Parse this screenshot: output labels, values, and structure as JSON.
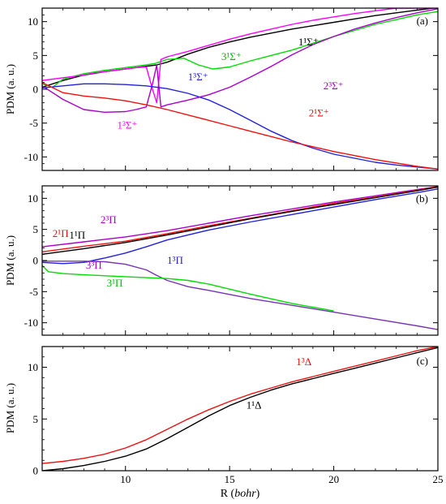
{
  "chart_data": [
    {
      "type": "line",
      "panel_label": "(a)",
      "ylabel": "PDM (a. u.)",
      "xlim": [
        6,
        25
      ],
      "ylim": [
        -12,
        12
      ],
      "yticks": [
        -10,
        -5,
        0,
        5,
        10
      ],
      "xticks": [
        10,
        15,
        20,
        25
      ],
      "series": [
        {
          "name": "1¹Σ⁺",
          "color": "#000000",
          "x": [
            6,
            7,
            8,
            9,
            10,
            11,
            11.5,
            12,
            13,
            14,
            15,
            16,
            17,
            18,
            19,
            20,
            21,
            22,
            23,
            24,
            25
          ],
          "y": [
            0.3,
            1.3,
            2.1,
            2.6,
            3.0,
            3.4,
            3.6,
            4.0,
            5.2,
            6.2,
            7.0,
            7.7,
            8.3,
            8.9,
            9.4,
            9.9,
            10.4,
            10.9,
            11.3,
            11.7,
            12.1
          ]
        },
        {
          "name": "3¹Σ⁺",
          "color": "#00dd00",
          "x": [
            6,
            6.5,
            7,
            8,
            9,
            10,
            11,
            11.4,
            11.6,
            12,
            12.8,
            13.5,
            14.2,
            15,
            16,
            17,
            18,
            19,
            20,
            21,
            22,
            23,
            24,
            25
          ],
          "y": [
            0.8,
            0.3,
            1.5,
            2.3,
            2.8,
            3.2,
            3.6,
            3.8,
            4.0,
            4.4,
            4.6,
            3.6,
            3.0,
            3.3,
            4.2,
            5.0,
            5.8,
            6.8,
            7.8,
            8.7,
            9.6,
            10.3,
            11.0,
            11.5
          ]
        },
        {
          "name": "1³Σ⁺",
          "color": "#ff00ff",
          "x": [
            6,
            6.5,
            7,
            7.5,
            8,
            8.5,
            9,
            9.5,
            10,
            10.5,
            11,
            11.3,
            11.5,
            11.7,
            12,
            13,
            14,
            15,
            16,
            17,
            18,
            19,
            20,
            21,
            22,
            23,
            24,
            25
          ],
          "y": [
            1.3,
            1.5,
            1.7,
            1.9,
            2.1,
            2.4,
            2.6,
            2.8,
            3.0,
            3.2,
            3.3,
            0,
            -2.0,
            4.4,
            4.8,
            5.6,
            6.5,
            7.4,
            8.2,
            8.9,
            9.6,
            10.2,
            10.7,
            11.2,
            11.6,
            12.0,
            12.0,
            12.0
          ]
        },
        {
          "name": "2³Σ⁺",
          "color": "#aa00cc",
          "x": [
            6,
            7,
            8,
            9,
            10,
            10.5,
            11,
            11.3,
            11.5,
            11.7,
            12,
            13,
            14,
            15,
            16,
            17,
            18,
            19,
            20,
            21,
            22,
            23,
            24,
            25
          ],
          "y": [
            0.5,
            -1.5,
            -3.0,
            -3.4,
            -3.3,
            -3.0,
            -2.6,
            0.8,
            3.6,
            -2.6,
            -2.3,
            -1.6,
            -0.8,
            0.3,
            1.8,
            3.4,
            5.1,
            6.6,
            7.8,
            8.9,
            9.8,
            10.6,
            11.3,
            11.9
          ]
        },
        {
          "name": "1³Σ⁺",
          "color": "#2222dd",
          "x": [
            6,
            7,
            8,
            9,
            10,
            11,
            12,
            13,
            14,
            15,
            16,
            17,
            18,
            19,
            20,
            21,
            22,
            23,
            24,
            25
          ],
          "y": [
            0.2,
            0.5,
            0.8,
            0.8,
            0.7,
            0.5,
            0.1,
            -0.6,
            -1.6,
            -3.0,
            -4.6,
            -6.2,
            -7.6,
            -8.7,
            -9.6,
            -10.2,
            -10.8,
            -11.2,
            -11.5,
            -11.8
          ]
        },
        {
          "name": "2¹Σ⁺",
          "color": "#ee1111",
          "x": [
            6,
            7,
            8,
            9,
            10,
            11,
            12,
            13,
            14,
            15,
            16,
            17,
            18,
            19,
            20,
            21,
            22,
            23,
            24,
            25
          ],
          "y": [
            1.0,
            -0.5,
            -1.0,
            -1.3,
            -1.7,
            -2.3,
            -3.0,
            -3.8,
            -4.6,
            -5.4,
            -6.2,
            -7.0,
            -7.8,
            -8.5,
            -9.2,
            -9.8,
            -10.4,
            -10.9,
            -11.4,
            -11.8
          ]
        }
      ],
      "annotations": [
        {
          "text": "1¹Σ⁺",
          "x": 18.3,
          "y": 6.5,
          "color": "#000000"
        },
        {
          "text": "3¹Σ⁺",
          "x": 14.6,
          "y": 4.3,
          "color": "#00bb00"
        },
        {
          "text": "1³Σ⁺",
          "x": 13.0,
          "y": 1.3,
          "color": "#2222dd"
        },
        {
          "text": "2³Σ⁺",
          "x": 19.5,
          "y": 0.0,
          "color": "#aa00cc"
        },
        {
          "text": "2¹Σ⁺",
          "x": 18.8,
          "y": -4.0,
          "color": "#ee1111"
        },
        {
          "text": "1³Σ⁺",
          "x": 9.6,
          "y": -5.8,
          "color": "#ff00ff"
        }
      ]
    },
    {
      "type": "line",
      "panel_label": "(b)",
      "ylabel": "PDM (a. u.)",
      "xlim": [
        6,
        25
      ],
      "ylim": [
        -12,
        12
      ],
      "yticks": [
        -10,
        -5,
        0,
        5,
        10
      ],
      "xticks": [
        10,
        15,
        20,
        25
      ],
      "series": [
        {
          "name": "2³Π",
          "color": "#aa00cc",
          "x": [
            6,
            8,
            10,
            12,
            14,
            16,
            18,
            20,
            22,
            24,
            25
          ],
          "y": [
            2.2,
            3.0,
            3.8,
            4.8,
            6.0,
            7.2,
            8.3,
            9.4,
            10.4,
            11.4,
            11.9
          ]
        },
        {
          "name": "2¹Π",
          "color": "#ee1111",
          "x": [
            6,
            8,
            10,
            12,
            14,
            16,
            18,
            20,
            22,
            24,
            25
          ],
          "y": [
            1.4,
            2.3,
            3.1,
            4.3,
            5.6,
            6.8,
            8.0,
            9.2,
            10.2,
            11.3,
            11.9
          ]
        },
        {
          "name": "1¹Π",
          "color": "#000000",
          "x": [
            6,
            8,
            10,
            12,
            14,
            16,
            18,
            20,
            22,
            24,
            25
          ],
          "y": [
            1.0,
            1.9,
            2.9,
            4.1,
            5.4,
            6.7,
            7.9,
            9.0,
            10.1,
            11.2,
            11.8
          ]
        },
        {
          "name": "1³Π",
          "color": "#2222dd",
          "x": [
            6,
            7,
            8,
            9,
            10,
            11,
            12,
            14,
            16,
            18,
            20,
            22,
            24,
            25
          ],
          "y": [
            -0.3,
            -0.5,
            -0.3,
            0.4,
            1.2,
            2.2,
            3.3,
            4.9,
            6.2,
            7.4,
            8.6,
            9.8,
            10.9,
            11.5
          ]
        },
        {
          "name": "3³Π",
          "color": "#7733bb",
          "x": [
            6,
            7,
            8,
            9,
            10,
            11,
            11.5,
            12,
            13,
            14,
            16,
            18,
            20,
            22,
            24,
            25
          ],
          "y": [
            -0.1,
            -0.1,
            -0.1,
            -0.2,
            -0.6,
            -1.5,
            -2.4,
            -3.2,
            -4.2,
            -4.8,
            -6.1,
            -7.2,
            -8.3,
            -9.4,
            -10.5,
            -11.1
          ]
        },
        {
          "name": "3¹Π",
          "color": "#00dd00",
          "x": [
            6,
            6.3,
            7,
            8,
            10,
            12,
            13,
            14,
            16,
            18,
            20
          ],
          "y": [
            -0.8,
            -1.8,
            -2.1,
            -2.3,
            -2.6,
            -2.9,
            -3.2,
            -3.8,
            -5.4,
            -6.9,
            -8.1
          ]
        }
      ],
      "annotations": [
        {
          "text": "2³Π",
          "x": 8.8,
          "y": 6.0,
          "color": "#aa00cc"
        },
        {
          "text": "2¹Π",
          "x": 6.5,
          "y": 3.8,
          "color": "#ee1111"
        },
        {
          "text": "1¹Π",
          "x": 7.3,
          "y": 3.5,
          "color": "#000000"
        },
        {
          "text": "1³Π",
          "x": 12.0,
          "y": -0.5,
          "color": "#2222dd"
        },
        {
          "text": "3³Π",
          "x": 8.1,
          "y": -1.3,
          "color": "#aa00cc"
        },
        {
          "text": "3¹Π",
          "x": 9.1,
          "y": -4.2,
          "color": "#00bb00"
        }
      ]
    },
    {
      "type": "line",
      "panel_label": "(c)",
      "xlabel_prefix": "R (",
      "xlabel_unit": "bohr",
      "xlabel_suffix": ")",
      "ylabel": "PDM (a. u.)",
      "xlim": [
        6,
        25
      ],
      "ylim": [
        0,
        12
      ],
      "yticks": [
        0,
        5,
        10
      ],
      "xticks": [
        10,
        15,
        20,
        25
      ],
      "series": [
        {
          "name": "1³Δ",
          "color": "#ee1111",
          "x": [
            6,
            7,
            8,
            9,
            10,
            11,
            12,
            13,
            14,
            15,
            16,
            17,
            18,
            19,
            20,
            21,
            22,
            23,
            24,
            25
          ],
          "y": [
            0.7,
            0.9,
            1.2,
            1.6,
            2.2,
            3.0,
            4.0,
            5.0,
            5.9,
            6.7,
            7.4,
            8.0,
            8.6,
            9.1,
            9.6,
            10.1,
            10.6,
            11.1,
            11.6,
            12.0
          ]
        },
        {
          "name": "1¹Δ",
          "color": "#000000",
          "x": [
            6,
            7,
            8,
            9,
            10,
            11,
            12,
            13,
            14,
            15,
            16,
            17,
            18,
            19,
            20,
            21,
            22,
            23,
            24,
            25
          ],
          "y": [
            0.0,
            0.2,
            0.5,
            0.9,
            1.4,
            2.1,
            3.1,
            4.2,
            5.3,
            6.3,
            7.1,
            7.8,
            8.4,
            8.9,
            9.4,
            9.9,
            10.4,
            10.9,
            11.4,
            11.9
          ]
        }
      ],
      "annotations": [
        {
          "text": "1³Δ",
          "x": 18.2,
          "y": 10.2,
          "color": "#ee1111"
        },
        {
          "text": "1¹Δ",
          "x": 15.8,
          "y": 6.0,
          "color": "#000000"
        }
      ]
    }
  ]
}
